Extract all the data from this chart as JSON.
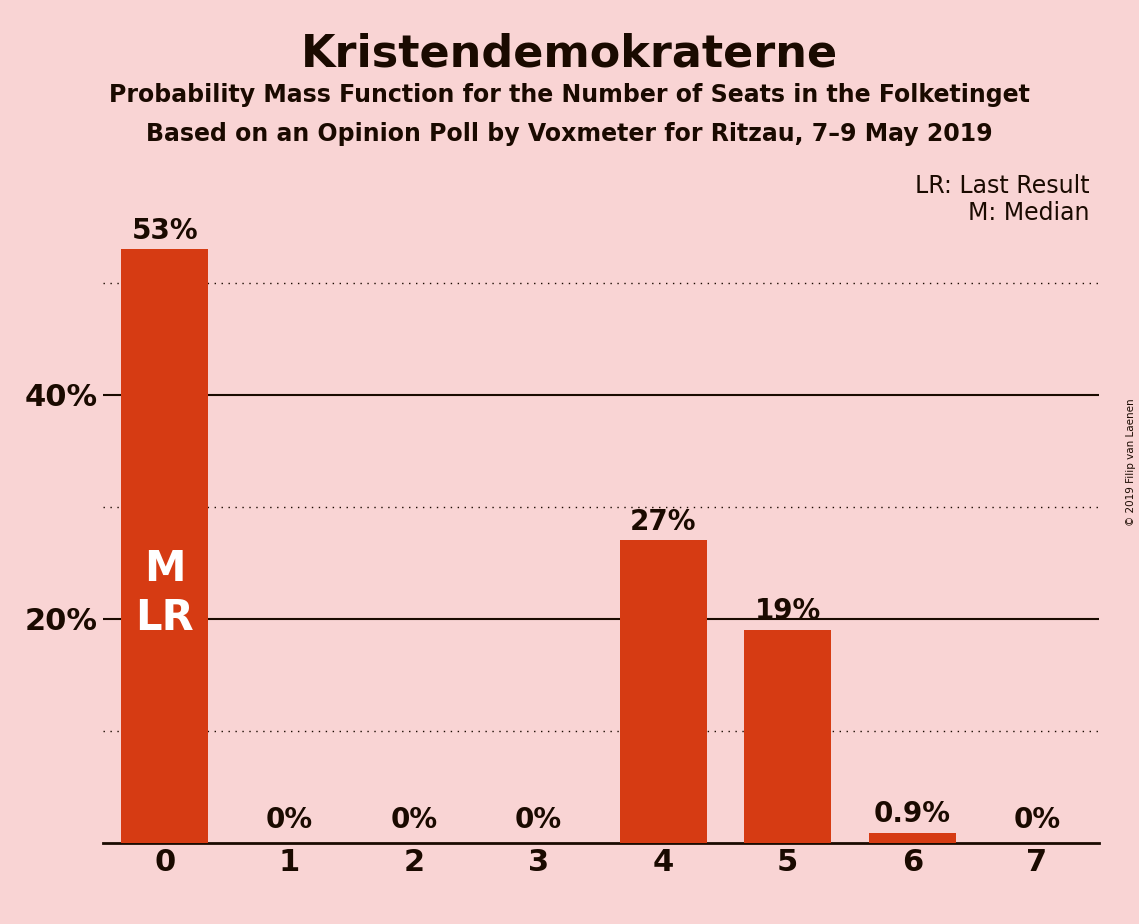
{
  "title": "Kristendemokraterne",
  "subtitle": "Probability Mass Function for the Number of Seats in the Folketinget",
  "subsubtitle": "Based on an Opinion Poll by Voxmeter for Ritzau, 7–9 May 2019",
  "copyright": "© 2019 Filip van Laenen",
  "categories": [
    0,
    1,
    2,
    3,
    4,
    5,
    6,
    7
  ],
  "values": [
    0.53,
    0.0,
    0.0,
    0.0,
    0.27,
    0.19,
    0.009,
    0.0
  ],
  "labels": [
    "53%",
    "0%",
    "0%",
    "0%",
    "27%",
    "19%",
    "0.9%",
    "0%"
  ],
  "bar_color": "#d63b13",
  "background_color": "#f9d4d4",
  "title_fontsize": 32,
  "subtitle_fontsize": 17,
  "label_fontsize": 20,
  "ytick_fontsize": 22,
  "xtick_fontsize": 22,
  "legend_fontsize": 17,
  "inner_label": "M\nLR",
  "inner_label_bar_index": 0,
  "yticks_solid": [
    0.2,
    0.4
  ],
  "yticks_dotted": [
    0.1,
    0.3,
    0.5
  ],
  "ylim": [
    0,
    0.6
  ],
  "xlim": [
    -0.5,
    7.5
  ],
  "bar_width": 0.7
}
